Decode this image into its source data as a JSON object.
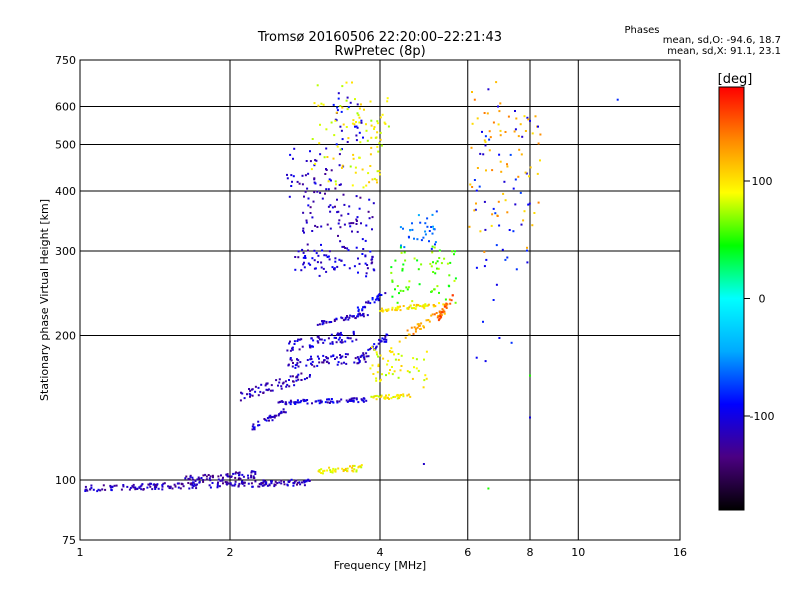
{
  "header": {
    "title": "Tromsø 20160506 22:20:00–22:21:43",
    "subtitle": "RwPretec (8p)"
  },
  "phases": {
    "title": "Phases",
    "line_o": "mean, sd,O: -94.6, 18.7",
    "line_x": "mean, sd,X:  91.1, 23.1"
  },
  "colorbar": {
    "label": "[deg]",
    "ticks": [
      100,
      0,
      -100
    ],
    "range": [
      -180,
      180
    ],
    "colors": [
      "#000000",
      "#4b0082",
      "#0000ff",
      "#00aaff",
      "#00ffff",
      "#00ff00",
      "#ffff00",
      "#ff8800",
      "#ff0000"
    ]
  },
  "chart_data": {
    "type": "scatter",
    "title": "Tromsø 20160506 22:20:00–22:21:43",
    "subtitle": "RwPretec (8p)",
    "xlabel": "Frequency [MHz]",
    "ylabel": "Stationary phase Virtual Height [km]",
    "x_scale": "log",
    "y_scale": "log",
    "xlim": [
      1,
      16
    ],
    "ylim": [
      75,
      750
    ],
    "x_ticks": [
      1,
      2,
      4,
      6,
      8,
      10,
      16
    ],
    "y_ticks": [
      75,
      100,
      200,
      300,
      400,
      500,
      600,
      750
    ],
    "grid": true,
    "color_label": "[deg]",
    "color_range": [
      -180,
      180
    ],
    "traces": [
      {
        "x_range": [
          1.02,
          2.9
        ],
        "y": [
          96,
          99
        ],
        "phase": -115,
        "spread": 0.03
      },
      {
        "x_range": [
          1.6,
          2.3
        ],
        "y": [
          100,
          103
        ],
        "phase": -120,
        "spread": 0.04
      },
      {
        "x_range": [
          3.0,
          3.7
        ],
        "y": [
          104,
          106
        ],
        "phase": 95,
        "spread": 0.03
      },
      {
        "x_range": [
          2.2,
          2.6
        ],
        "y": [
          128,
          140
        ],
        "phase": -110,
        "spread": 0.03
      },
      {
        "x_range": [
          2.5,
          3.8
        ],
        "y": [
          145,
          147
        ],
        "phase": -105,
        "spread": 0.02
      },
      {
        "x_range": [
          3.8,
          4.6
        ],
        "y": [
          148,
          150
        ],
        "phase": 95,
        "spread": 0.02
      },
      {
        "x_range": [
          2.1,
          2.9
        ],
        "y": [
          150,
          165
        ],
        "phase": -115,
        "spread": 0.05
      },
      {
        "x_range": [
          2.6,
          3.8
        ],
        "y": [
          175,
          180
        ],
        "phase": -110,
        "spread": 0.05
      },
      {
        "x_range": [
          3.6,
          4.2
        ],
        "y": [
          180,
          200
        ],
        "phase": -105,
        "spread": 0.04
      },
      {
        "x_range": [
          3.0,
          3.8
        ],
        "y": [
          212,
          222
        ],
        "phase": -110,
        "spread": 0.02
      },
      {
        "x_range": [
          3.6,
          4.1
        ],
        "y": [
          225,
          245
        ],
        "phase": -100,
        "spread": 0.03
      },
      {
        "x_range": [
          2.6,
          3.6
        ],
        "y": [
          190,
          200
        ],
        "phase": -110,
        "spread": 0.05
      },
      {
        "x_range": [
          2.7,
          3.9
        ],
        "y": [
          270,
          300
        ],
        "phase": -110,
        "spread": 0.07
      },
      {
        "x_range": [
          2.8,
          3.9
        ],
        "y": [
          310,
          380
        ],
        "phase": -115,
        "spread": 0.08
      },
      {
        "x_range": [
          2.6,
          3.4
        ],
        "y": [
          380,
          480
        ],
        "phase": -110,
        "spread": 0.09
      },
      {
        "x_range": [
          3.2,
          3.7
        ],
        "y": [
          500,
          640
        ],
        "phase": -100,
        "spread": 0.08
      },
      {
        "x_range": [
          4.5,
          5.4
        ],
        "y": [
          200,
          225
        ],
        "phase": 130,
        "spread": 0.04
      },
      {
        "x_range": [
          4.0,
          5.4
        ],
        "y": [
          226,
          232
        ],
        "phase": 100,
        "spread": 0.02
      },
      {
        "x_range": [
          5.2,
          5.6
        ],
        "y": [
          215,
          240
        ],
        "phase": 150,
        "spread": 0.03
      },
      {
        "x_range": [
          3.5,
          4.0
        ],
        "y": [
          400,
          600
        ],
        "phase": 95,
        "spread": 0.07
      },
      {
        "x_range": [
          3.8,
          5.0
        ],
        "y": [
          160,
          190
        ],
        "phase": 90,
        "spread": 0.08
      },
      {
        "x_range": [
          4.2,
          5.8
        ],
        "y": [
          240,
          300
        ],
        "phase": 60,
        "spread": 0.08
      },
      {
        "x_range": [
          4.4,
          5.2
        ],
        "y": [
          300,
          360
        ],
        "phase": -60,
        "spread": 0.06
      },
      {
        "x_range": [
          6.2,
          8.0
        ],
        "y": [
          180,
          600
        ],
        "phase": -90,
        "spread": 0.25
      },
      {
        "x_range": [
          6.0,
          8.5
        ],
        "y": [
          300,
          620
        ],
        "phase": 120,
        "spread": 0.25
      },
      {
        "x_range": [
          2.9,
          4.2
        ],
        "y": [
          420,
          650
        ],
        "phase": 90,
        "spread": 0.15
      }
    ],
    "points": [
      {
        "x": 8.0,
        "y": 560,
        "phase": -100
      },
      {
        "x": 8.3,
        "y": 545,
        "phase": -100
      },
      {
        "x": 12.0,
        "y": 620,
        "phase": -80
      },
      {
        "x": 6.9,
        "y": 600,
        "phase": -100
      },
      {
        "x": 6.2,
        "y": 620,
        "phase": 140
      },
      {
        "x": 6.6,
        "y": 96,
        "phase": 50
      },
      {
        "x": 8.0,
        "y": 165,
        "phase": 50
      },
      {
        "x": 8.0,
        "y": 135,
        "phase": -100
      },
      {
        "x": 4.9,
        "y": 108,
        "phase": -110
      }
    ]
  }
}
